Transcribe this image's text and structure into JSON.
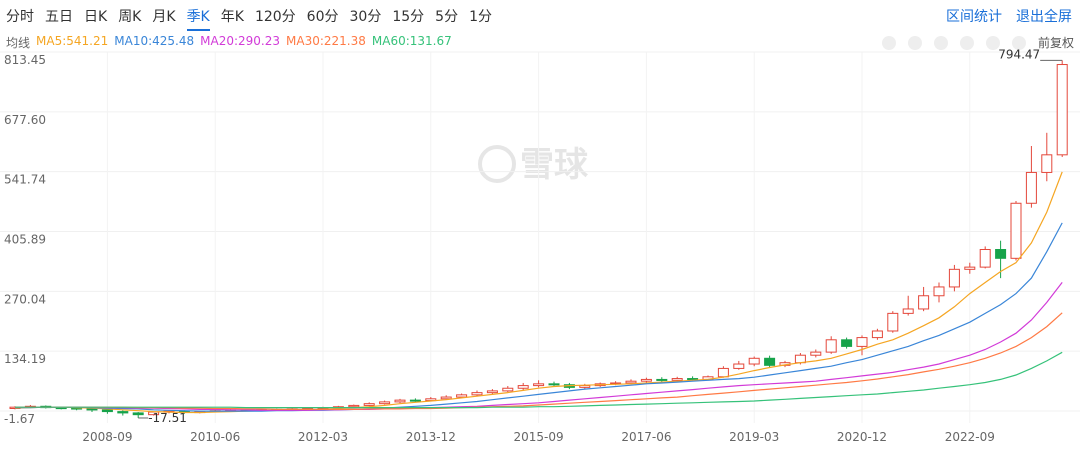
{
  "toolbar": {
    "tabs": [
      "分时",
      "五日",
      "日K",
      "周K",
      "月K",
      "季K",
      "年K",
      "120分",
      "60分",
      "30分",
      "15分",
      "5分",
      "1分"
    ],
    "active_tab": "季K",
    "links": [
      "区间统计",
      "退出全屏"
    ],
    "adjust": "前复权",
    "ma_prefix": "均线",
    "watermark": "雪球"
  },
  "chart_data": {
    "type": "candlestick",
    "categories": [
      null,
      null,
      null,
      null,
      null,
      null,
      "2008-09",
      null,
      null,
      null,
      null,
      null,
      null,
      "2010-06",
      null,
      null,
      null,
      null,
      null,
      null,
      "2012-03",
      null,
      null,
      null,
      null,
      null,
      null,
      "2013-12",
      null,
      null,
      null,
      null,
      null,
      null,
      "2015-09",
      null,
      null,
      null,
      null,
      null,
      null,
      "2017-06",
      null,
      null,
      null,
      null,
      null,
      null,
      "2019-03",
      null,
      null,
      null,
      null,
      null,
      null,
      "2020-12",
      null,
      null,
      null,
      null,
      null,
      null,
      "2022-09",
      null,
      null,
      null,
      null,
      null,
      null
    ],
    "open": [
      4,
      7,
      9,
      6,
      5,
      3,
      1,
      -3,
      -6,
      -10,
      -4,
      -2,
      -5,
      -3,
      -1,
      1,
      0,
      2,
      1,
      3,
      4,
      6,
      8,
      11,
      15,
      19,
      23,
      22,
      26,
      30,
      35,
      40,
      44,
      50,
      56,
      60,
      58,
      52,
      56,
      60,
      62,
      66,
      70,
      68,
      72,
      70,
      76,
      95,
      105,
      118,
      102,
      108,
      125,
      132,
      160,
      145,
      165,
      180,
      220,
      230,
      260,
      280,
      320,
      325,
      365,
      345,
      470,
      540,
      580
    ],
    "close": [
      7,
      9,
      6,
      5,
      3,
      1,
      -3,
      -6,
      -10,
      -4,
      -2,
      -5,
      -3,
      -1,
      1,
      0,
      2,
      1,
      3,
      4,
      6,
      8,
      11,
      15,
      19,
      23,
      22,
      26,
      30,
      35,
      40,
      44,
      50,
      56,
      60,
      58,
      52,
      56,
      60,
      62,
      66,
      70,
      68,
      72,
      70,
      76,
      95,
      105,
      118,
      102,
      108,
      125,
      132,
      160,
      145,
      165,
      180,
      220,
      230,
      260,
      280,
      320,
      325,
      365,
      345,
      470,
      540,
      580,
      785
    ],
    "high": [
      9,
      12,
      11,
      8,
      7,
      5,
      3,
      0,
      -4,
      -3,
      0,
      0,
      -1,
      1,
      3,
      3,
      4,
      4,
      5,
      6,
      8,
      10,
      13,
      18,
      22,
      26,
      27,
      30,
      34,
      38,
      45,
      48,
      55,
      62,
      68,
      65,
      62,
      60,
      63,
      66,
      70,
      74,
      75,
      76,
      77,
      79,
      100,
      112,
      122,
      124,
      112,
      130,
      138,
      168,
      165,
      170,
      185,
      225,
      260,
      280,
      290,
      330,
      335,
      372,
      385,
      475,
      600,
      630,
      794.47
    ],
    "low": [
      2,
      5,
      4,
      2,
      0,
      -4,
      -8,
      -12,
      -17.51,
      -12,
      -7,
      -8,
      -7,
      -5,
      -3,
      -2,
      -1,
      -1,
      0,
      1,
      3,
      4,
      6,
      9,
      13,
      16,
      19,
      20,
      24,
      28,
      32,
      37,
      41,
      46,
      52,
      53,
      48,
      49,
      53,
      57,
      59,
      63,
      64,
      65,
      66,
      68,
      74,
      92,
      100,
      98,
      98,
      104,
      120,
      128,
      140,
      125,
      160,
      176,
      215,
      225,
      245,
      270,
      310,
      322,
      300,
      340,
      460,
      520,
      575
    ],
    "up_color": "#e4473a",
    "down_color": "#16a34a",
    "series": [
      {
        "name": "MA5:541.21",
        "color": "#f5a623",
        "values": [
          5,
          6,
          7,
          7,
          6,
          5,
          3,
          1,
          -1,
          -3,
          -4,
          -5,
          -5,
          -4,
          -3,
          -2,
          -1,
          0,
          1,
          1,
          2,
          4,
          6,
          8,
          11,
          15,
          18,
          21,
          24,
          28,
          32,
          36,
          40,
          45,
          50,
          54,
          56,
          57,
          58,
          59,
          60,
          62,
          64,
          66,
          68,
          70,
          75,
          82,
          90,
          97,
          103,
          108,
          112,
          118,
          128,
          138,
          150,
          160,
          175,
          192,
          210,
          235,
          265,
          290,
          315,
          335,
          380,
          450,
          541.21
        ]
      },
      {
        "name": "MA10:425.48",
        "color": "#3a86d8",
        "values": [
          6,
          6,
          7,
          7,
          7,
          6,
          5,
          4,
          3,
          1,
          0,
          -1,
          -2,
          -2,
          -2,
          -2,
          -2,
          -1,
          -1,
          0,
          0,
          1,
          2,
          3,
          5,
          7,
          9,
          11,
          14,
          17,
          20,
          24,
          28,
          32,
          36,
          40,
          44,
          48,
          51,
          54,
          57,
          60,
          62,
          64,
          66,
          68,
          70,
          72,
          75,
          80,
          85,
          90,
          95,
          100,
          108,
          115,
          125,
          135,
          145,
          158,
          170,
          185,
          200,
          220,
          240,
          265,
          300,
          360,
          425.48
        ]
      },
      {
        "name": "MA20:290.23",
        "color": "#d23bd8",
        "values": [
          7,
          7,
          7,
          7,
          7,
          7,
          6,
          6,
          5,
          5,
          4,
          3,
          2,
          2,
          1,
          1,
          0,
          0,
          0,
          0,
          1,
          1,
          2,
          2,
          3,
          4,
          5,
          6,
          7,
          8,
          9,
          11,
          13,
          15,
          17,
          20,
          23,
          26,
          29,
          32,
          35,
          38,
          41,
          44,
          47,
          50,
          53,
          56,
          58,
          60,
          62,
          64,
          66,
          70,
          74,
          78,
          82,
          86,
          92,
          98,
          105,
          115,
          125,
          138,
          155,
          175,
          205,
          245,
          290.23
        ]
      },
      {
        "name": "MA30:221.38",
        "color": "#ff7a45",
        "values": [
          7,
          7,
          7,
          7,
          7,
          7,
          7,
          7,
          6,
          6,
          6,
          5,
          5,
          4,
          4,
          3,
          3,
          2,
          2,
          2,
          2,
          2,
          2,
          3,
          3,
          3,
          4,
          4,
          5,
          6,
          7,
          8,
          9,
          10,
          12,
          14,
          16,
          18,
          20,
          22,
          24,
          26,
          28,
          30,
          33,
          36,
          39,
          42,
          45,
          48,
          51,
          54,
          57,
          60,
          63,
          67,
          71,
          76,
          81,
          87,
          93,
          100,
          108,
          118,
          130,
          145,
          165,
          190,
          221.38
        ]
      },
      {
        "name": "MA60:131.67",
        "color": "#36c27a",
        "values": [
          7,
          7,
          7,
          7,
          7,
          7,
          7,
          7,
          7,
          7,
          7,
          7,
          7,
          7,
          7,
          6,
          6,
          6,
          6,
          6,
          6,
          6,
          6,
          6,
          6,
          6,
          6,
          6,
          6,
          6,
          6,
          7,
          7,
          7,
          8,
          8,
          9,
          10,
          11,
          12,
          13,
          14,
          15,
          16,
          17,
          18,
          19,
          20,
          21,
          23,
          25,
          27,
          29,
          31,
          33,
          35,
          37,
          40,
          43,
          46,
          50,
          54,
          58,
          63,
          70,
          80,
          95,
          112,
          131.67
        ]
      }
    ],
    "ylim": [
      -1.67,
      813.45
    ],
    "yticks": [
      -1.67,
      134.19,
      270.04,
      405.89,
      541.74,
      {
        "value": 677.6,
        "label": "677.60"
      },
      813.45
    ],
    "high_label": 794.47,
    "low_label": -17.51,
    "grid": true
  }
}
